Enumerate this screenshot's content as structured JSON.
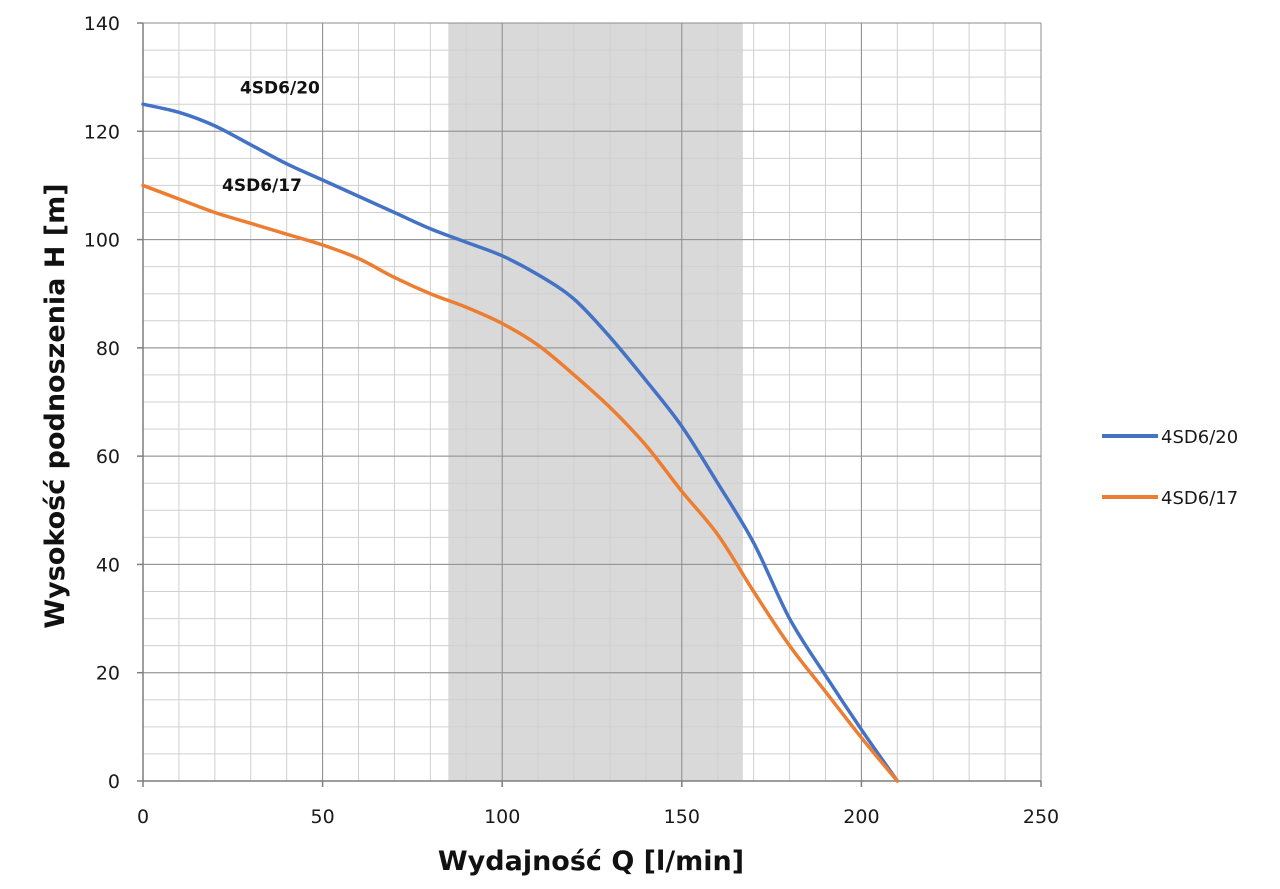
{
  "chart_data": {
    "type": "line",
    "xlabel": "Wydajność Q [l/min]",
    "ylabel": "Wysokość podnoszenia H [m]",
    "xlim": [
      0,
      250
    ],
    "ylim": [
      0,
      140
    ],
    "x_ticks": [
      0,
      50,
      100,
      150,
      200,
      250
    ],
    "y_ticks": [
      0,
      20,
      40,
      60,
      80,
      100,
      120,
      140
    ],
    "x_minor_step": 10,
    "y_minor_step": 5,
    "grid": true,
    "shaded_region": {
      "x_from": 85,
      "x_to": 167,
      "color": "#d9d9d9"
    },
    "legend_position": "right",
    "series": [
      {
        "name": "4SD6/20",
        "color": "#4472c4",
        "x": [
          0,
          10,
          20,
          30,
          40,
          50,
          60,
          70,
          80,
          90,
          100,
          110,
          120,
          130,
          140,
          150,
          160,
          170,
          180,
          190,
          200,
          210
        ],
        "y": [
          125,
          123.5,
          121,
          117.5,
          114,
          111,
          108,
          105,
          102,
          99.5,
          97,
          93.5,
          89,
          82,
          74,
          65.5,
          55,
          44,
          30,
          19.5,
          9.5,
          0
        ]
      },
      {
        "name": "4SD6/17",
        "color": "#ed7d31",
        "x": [
          0,
          10,
          20,
          30,
          40,
          50,
          60,
          70,
          80,
          90,
          100,
          110,
          120,
          130,
          140,
          150,
          160,
          170,
          180,
          190,
          200,
          210
        ],
        "y": [
          110,
          107.5,
          105,
          103,
          101,
          99,
          96.5,
          93,
          90,
          87.5,
          84.5,
          80.5,
          75,
          69,
          62,
          53.5,
          45.5,
          35,
          25,
          16.5,
          8,
          0
        ]
      }
    ],
    "annotations": [
      {
        "text": "4SD6/20",
        "x": 27,
        "y": 127
      },
      {
        "text": "4SD6/17",
        "x": 22,
        "y": 109
      }
    ],
    "legend": [
      {
        "label": "4SD6/20",
        "color": "#4472c4"
      },
      {
        "label": "4SD6/17",
        "color": "#ed7d31"
      }
    ]
  }
}
